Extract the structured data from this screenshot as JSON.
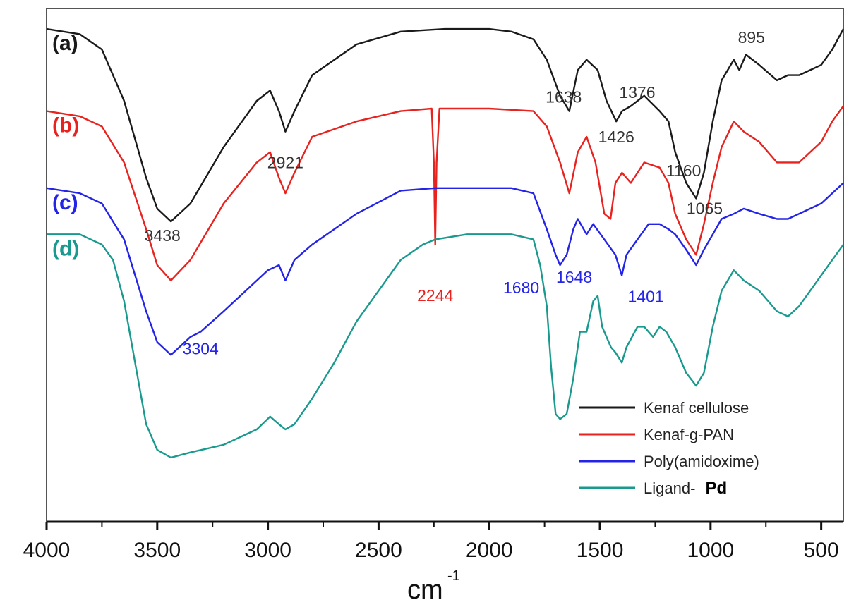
{
  "chart_data": {
    "type": "line",
    "xlabel": "cm",
    "xlabel_sup": "-1",
    "xlim": [
      4000,
      400
    ],
    "x_ticks": [
      "4000",
      "3500",
      "3000",
      "2500",
      "2000",
      "1500",
      "1000",
      "500"
    ],
    "x_tick_values": [
      4000,
      3500,
      3000,
      2500,
      2000,
      1500,
      1000,
      500
    ],
    "y_axis_shown": false,
    "ylim": [
      0,
      100
    ],
    "grid": false,
    "legend_position": "bottom-right",
    "series": [
      {
        "name": "Kenaf cellulose",
        "tag": "(a)",
        "color": "#1a1a1a",
        "points": [
          [
            4000,
            96
          ],
          [
            3850,
            95
          ],
          [
            3750,
            92
          ],
          [
            3650,
            82
          ],
          [
            3550,
            67
          ],
          [
            3500,
            61
          ],
          [
            3438,
            58.5
          ],
          [
            3350,
            62
          ],
          [
            3200,
            73
          ],
          [
            3050,
            82
          ],
          [
            2990,
            84
          ],
          [
            2950,
            80
          ],
          [
            2921,
            76
          ],
          [
            2880,
            80
          ],
          [
            2800,
            87
          ],
          [
            2600,
            93
          ],
          [
            2400,
            95.5
          ],
          [
            2200,
            96
          ],
          [
            2000,
            96
          ],
          [
            1900,
            95.5
          ],
          [
            1800,
            94
          ],
          [
            1740,
            90
          ],
          [
            1680,
            83
          ],
          [
            1638,
            80
          ],
          [
            1600,
            88
          ],
          [
            1560,
            90
          ],
          [
            1510,
            88
          ],
          [
            1470,
            82
          ],
          [
            1426,
            78
          ],
          [
            1400,
            80
          ],
          [
            1360,
            81
          ],
          [
            1300,
            83
          ],
          [
            1230,
            80
          ],
          [
            1190,
            78
          ],
          [
            1160,
            72
          ],
          [
            1110,
            66
          ],
          [
            1065,
            63
          ],
          [
            1030,
            68
          ],
          [
            990,
            78
          ],
          [
            950,
            86
          ],
          [
            895,
            90
          ],
          [
            870,
            88
          ],
          [
            840,
            91
          ],
          [
            780,
            89
          ],
          [
            700,
            86
          ],
          [
            650,
            87
          ],
          [
            600,
            87
          ],
          [
            550,
            88
          ],
          [
            500,
            89
          ],
          [
            450,
            92
          ],
          [
            400,
            96
          ]
        ],
        "peaks": [
          {
            "x": 3438,
            "label": "3438"
          },
          {
            "x": 2921,
            "label": "2921"
          },
          {
            "x": 1638,
            "label": "1638"
          },
          {
            "x": 1426,
            "label": "1426"
          },
          {
            "x": 1376,
            "label": "1376"
          },
          {
            "x": 1160,
            "label": "1160"
          },
          {
            "x": 1065,
            "label": "1065"
          },
          {
            "x": 895,
            "label": "895"
          }
        ]
      },
      {
        "name": "Kenaf-g-PAN",
        "tag": "(b)",
        "color": "#e8231f",
        "points": [
          [
            4000,
            80
          ],
          [
            3850,
            79
          ],
          [
            3750,
            77
          ],
          [
            3650,
            70
          ],
          [
            3550,
            57
          ],
          [
            3500,
            50
          ],
          [
            3438,
            47
          ],
          [
            3350,
            51
          ],
          [
            3200,
            62
          ],
          [
            3050,
            70
          ],
          [
            2990,
            72
          ],
          [
            2950,
            67
          ],
          [
            2921,
            64
          ],
          [
            2880,
            68
          ],
          [
            2800,
            75
          ],
          [
            2600,
            78
          ],
          [
            2400,
            80
          ],
          [
            2260,
            80.5
          ],
          [
            2250,
            70
          ],
          [
            2244,
            54
          ],
          [
            2238,
            70
          ],
          [
            2225,
            80.5
          ],
          [
            2000,
            80.5
          ],
          [
            1800,
            80
          ],
          [
            1740,
            77
          ],
          [
            1680,
            70
          ],
          [
            1638,
            64
          ],
          [
            1600,
            72
          ],
          [
            1560,
            75
          ],
          [
            1520,
            70
          ],
          [
            1480,
            60
          ],
          [
            1452,
            59
          ],
          [
            1430,
            66
          ],
          [
            1400,
            68
          ],
          [
            1360,
            66
          ],
          [
            1300,
            70
          ],
          [
            1230,
            69
          ],
          [
            1190,
            66
          ],
          [
            1160,
            60
          ],
          [
            1110,
            55
          ],
          [
            1065,
            52
          ],
          [
            1030,
            58
          ],
          [
            990,
            66
          ],
          [
            950,
            73
          ],
          [
            895,
            78
          ],
          [
            850,
            76
          ],
          [
            780,
            74
          ],
          [
            700,
            70
          ],
          [
            650,
            70
          ],
          [
            600,
            70
          ],
          [
            550,
            72
          ],
          [
            500,
            74
          ],
          [
            450,
            78
          ],
          [
            400,
            81
          ]
        ],
        "peaks": [
          {
            "x": 2244,
            "label": "2244"
          }
        ]
      },
      {
        "name": "Poly(amidoxime)",
        "tag": "(c)",
        "color": "#2424e8",
        "points": [
          [
            4000,
            65
          ],
          [
            3850,
            64
          ],
          [
            3750,
            62
          ],
          [
            3650,
            55
          ],
          [
            3550,
            41
          ],
          [
            3500,
            35
          ],
          [
            3438,
            32.5
          ],
          [
            3350,
            36
          ],
          [
            3304,
            37
          ],
          [
            3200,
            41
          ],
          [
            3100,
            45
          ],
          [
            3000,
            49
          ],
          [
            2950,
            50
          ],
          [
            2921,
            47
          ],
          [
            2880,
            51
          ],
          [
            2800,
            54
          ],
          [
            2600,
            60
          ],
          [
            2400,
            64.5
          ],
          [
            2244,
            65
          ],
          [
            2100,
            65
          ],
          [
            1900,
            65
          ],
          [
            1800,
            64
          ],
          [
            1740,
            57
          ],
          [
            1700,
            52
          ],
          [
            1680,
            50
          ],
          [
            1650,
            52
          ],
          [
            1620,
            57
          ],
          [
            1600,
            59
          ],
          [
            1560,
            56
          ],
          [
            1530,
            58
          ],
          [
            1480,
            55
          ],
          [
            1430,
            52
          ],
          [
            1401,
            48
          ],
          [
            1380,
            52
          ],
          [
            1330,
            55
          ],
          [
            1280,
            58
          ],
          [
            1230,
            58
          ],
          [
            1190,
            57
          ],
          [
            1160,
            56
          ],
          [
            1110,
            53
          ],
          [
            1065,
            50
          ],
          [
            1030,
            53
          ],
          [
            990,
            56
          ],
          [
            950,
            59
          ],
          [
            895,
            60
          ],
          [
            850,
            61
          ],
          [
            780,
            60
          ],
          [
            700,
            59
          ],
          [
            650,
            59
          ],
          [
            600,
            60
          ],
          [
            550,
            61
          ],
          [
            500,
            62
          ],
          [
            450,
            64
          ],
          [
            400,
            66
          ]
        ],
        "peaks": [
          {
            "x": 3304,
            "label": "3304"
          },
          {
            "x": 1680,
            "label": "1680"
          },
          {
            "x": 1648,
            "label": "1648"
          },
          {
            "x": 1401,
            "label": "1401"
          }
        ]
      },
      {
        "name": "Ligand- Pd",
        "tag": "(d)",
        "color": "#1a9a8e",
        "points": [
          [
            4000,
            56
          ],
          [
            3850,
            56
          ],
          [
            3750,
            54
          ],
          [
            3700,
            51
          ],
          [
            3650,
            43
          ],
          [
            3600,
            31
          ],
          [
            3550,
            19
          ],
          [
            3500,
            14
          ],
          [
            3438,
            12.5
          ],
          [
            3350,
            13.5
          ],
          [
            3200,
            15
          ],
          [
            3050,
            18
          ],
          [
            2990,
            20.5
          ],
          [
            2950,
            19
          ],
          [
            2921,
            18
          ],
          [
            2880,
            19
          ],
          [
            2800,
            24
          ],
          [
            2700,
            31
          ],
          [
            2600,
            39
          ],
          [
            2500,
            45
          ],
          [
            2400,
            51
          ],
          [
            2300,
            54
          ],
          [
            2244,
            55
          ],
          [
            2100,
            56
          ],
          [
            1900,
            56
          ],
          [
            1800,
            55
          ],
          [
            1770,
            50
          ],
          [
            1740,
            42
          ],
          [
            1720,
            30
          ],
          [
            1700,
            21
          ],
          [
            1680,
            20
          ],
          [
            1650,
            21
          ],
          [
            1620,
            28
          ],
          [
            1590,
            37
          ],
          [
            1560,
            37
          ],
          [
            1530,
            43
          ],
          [
            1510,
            44
          ],
          [
            1490,
            38
          ],
          [
            1470,
            36
          ],
          [
            1450,
            34
          ],
          [
            1430,
            33
          ],
          [
            1401,
            31
          ],
          [
            1380,
            34
          ],
          [
            1330,
            38
          ],
          [
            1300,
            38
          ],
          [
            1260,
            36
          ],
          [
            1230,
            38
          ],
          [
            1200,
            37
          ],
          [
            1160,
            34
          ],
          [
            1110,
            29
          ],
          [
            1065,
            26.5
          ],
          [
            1030,
            29
          ],
          [
            990,
            38
          ],
          [
            950,
            45
          ],
          [
            895,
            49
          ],
          [
            850,
            47
          ],
          [
            780,
            45
          ],
          [
            740,
            43
          ],
          [
            700,
            41
          ],
          [
            650,
            40
          ],
          [
            600,
            42
          ],
          [
            550,
            45
          ],
          [
            500,
            48
          ],
          [
            450,
            51
          ],
          [
            400,
            54
          ]
        ],
        "peaks": []
      }
    ]
  }
}
